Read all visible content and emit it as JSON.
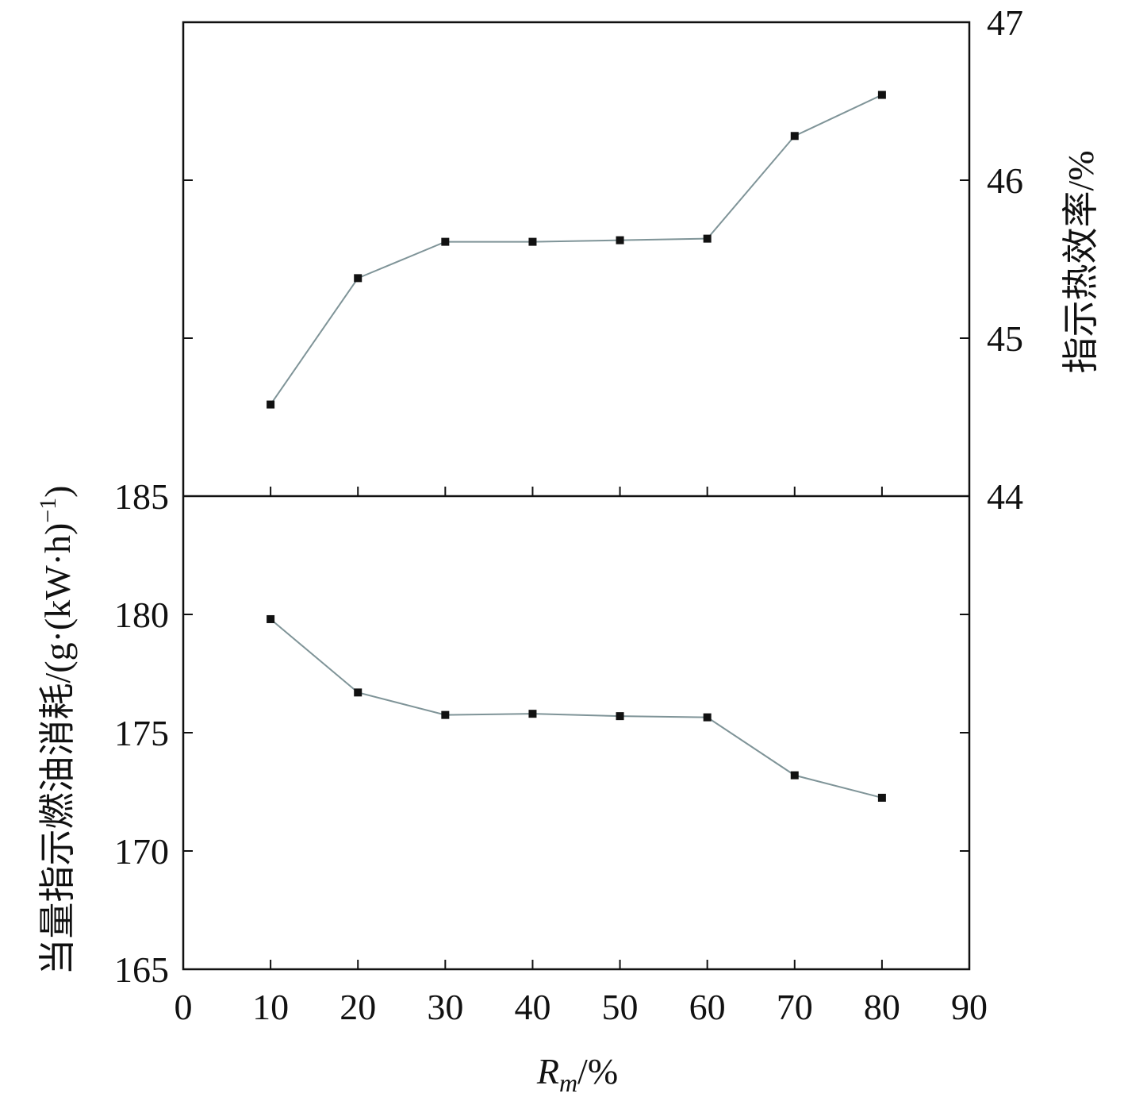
{
  "chart_data": [
    {
      "type": "line",
      "panel": "top",
      "x": [
        10,
        20,
        30,
        40,
        50,
        60,
        70,
        80
      ],
      "series": [
        {
          "values": [
            44.58,
            45.38,
            45.61,
            45.61,
            45.62,
            45.63,
            46.28,
            46.54
          ]
        }
      ],
      "y_axis_side": "right",
      "ylabel": "指示热效率/%",
      "ylim": [
        44,
        47
      ],
      "yticks": [
        "44",
        "45",
        "46",
        "47"
      ],
      "grid": false,
      "line_color": "#7f9498",
      "marker_color": "#111111"
    },
    {
      "type": "line",
      "panel": "bottom",
      "x": [
        10,
        20,
        30,
        40,
        50,
        60,
        70,
        80
      ],
      "series": [
        {
          "values": [
            179.8,
            176.7,
            175.75,
            175.8,
            175.7,
            175.65,
            173.2,
            172.25
          ]
        }
      ],
      "y_axis_side": "left",
      "ylim": [
        165,
        185
      ],
      "yticks": [
        "165",
        "170",
        "175",
        "180",
        "185"
      ],
      "grid": false,
      "line_color": "#7f9498",
      "marker_color": "#111111"
    }
  ],
  "shared_axes": {
    "xlim": [
      0,
      90
    ],
    "xticks": [
      "0",
      "10",
      "20",
      "30",
      "40",
      "50",
      "60",
      "70",
      "80",
      "90"
    ],
    "xlabel_italic": "R",
    "xlabel_sub": "m",
    "xlabel_suffix": "/%",
    "left_ylabel": "当量指示燃油消耗/(g·(kW·h)",
    "left_ylabel_sup": "−1",
    "left_ylabel_end": ")"
  }
}
